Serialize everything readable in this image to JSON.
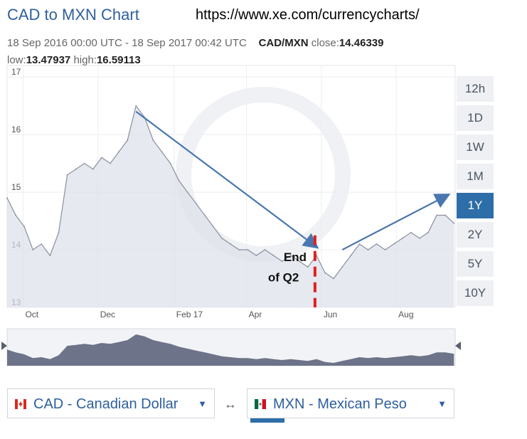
{
  "header": {
    "title": "CAD to MXN Chart",
    "url": "https://www.xe.com/currencycharts/",
    "range": "18 Sep 2016 00:00 UTC - 18 Sep 2017 00:42 UTC",
    "pair": "CAD/MXN",
    "close_label": "close:",
    "close_value": "14.46339",
    "low_label": "low:",
    "low_value": "13.47937",
    "high_label": "high:",
    "high_value": "16.59113"
  },
  "range_buttons": [
    {
      "label": "12h",
      "active": false
    },
    {
      "label": "1D",
      "active": false
    },
    {
      "label": "1W",
      "active": false
    },
    {
      "label": "1M",
      "active": false
    },
    {
      "label": "1Y",
      "active": true
    },
    {
      "label": "2Y",
      "active": false
    },
    {
      "label": "5Y",
      "active": false
    },
    {
      "label": "10Y",
      "active": false
    }
  ],
  "annotation": {
    "line1": "End",
    "line2": "of Q2"
  },
  "selectors": {
    "from": {
      "label": "CAD - Canadian Dollar"
    },
    "to": {
      "label": "MXN - Mexican Peso"
    },
    "swap_symbol": "↔"
  },
  "colors": {
    "accent": "#2e6ea8",
    "area": "#dcdfe8",
    "line": "#8a8fa0",
    "marker": "#e02020",
    "arrow": "#4a76b0"
  },
  "chart_data": {
    "type": "area",
    "ylim": [
      13,
      17.2
    ],
    "yticks": [
      13,
      14,
      15,
      16,
      17
    ],
    "xlim": [
      "2016-09-18",
      "2017-09-18"
    ],
    "xticks": [
      {
        "label": "Oct",
        "date": "2016-10-01"
      },
      {
        "label": "Dec",
        "date": "2016-12-01"
      },
      {
        "label": "Feb 17",
        "date": "2017-02-01"
      },
      {
        "label": "Apr",
        "date": "2017-04-01"
      },
      {
        "label": "Jun",
        "date": "2017-06-01"
      },
      {
        "label": "Aug",
        "date": "2017-08-01"
      }
    ],
    "series": [
      {
        "x": [
          "2016-09-18",
          "2016-09-25",
          "2016-10-02",
          "2016-10-09",
          "2016-10-16",
          "2016-10-23",
          "2016-10-30",
          "2016-11-06",
          "2016-11-13",
          "2016-11-20",
          "2016-11-27",
          "2016-12-04",
          "2016-12-11",
          "2016-12-18",
          "2016-12-25",
          "2017-01-01",
          "2017-01-08",
          "2017-01-15",
          "2017-01-22",
          "2017-01-29",
          "2017-02-05",
          "2017-02-12",
          "2017-02-19",
          "2017-02-26",
          "2017-03-05",
          "2017-03-12",
          "2017-03-19",
          "2017-03-26",
          "2017-04-02",
          "2017-04-09",
          "2017-04-16",
          "2017-04-23",
          "2017-04-30",
          "2017-05-07",
          "2017-05-14",
          "2017-05-21",
          "2017-05-28",
          "2017-06-04",
          "2017-06-11",
          "2017-06-18",
          "2017-06-25",
          "2017-07-02",
          "2017-07-09",
          "2017-07-16",
          "2017-07-23",
          "2017-07-30",
          "2017-08-06",
          "2017-08-13",
          "2017-08-20",
          "2017-08-27",
          "2017-09-03",
          "2017-09-10",
          "2017-09-17"
        ],
        "y": [
          14.9,
          14.6,
          14.4,
          14.0,
          14.1,
          13.9,
          14.3,
          15.3,
          15.4,
          15.5,
          15.4,
          15.6,
          15.5,
          15.7,
          15.9,
          16.5,
          16.3,
          15.9,
          15.7,
          15.5,
          15.2,
          15.0,
          14.8,
          14.6,
          14.4,
          14.2,
          14.1,
          14.0,
          14.0,
          13.9,
          14.0,
          13.9,
          13.8,
          13.9,
          13.8,
          13.7,
          13.9,
          13.6,
          13.5,
          13.7,
          13.9,
          14.1,
          14.0,
          14.1,
          14.0,
          14.1,
          14.2,
          14.3,
          14.2,
          14.3,
          14.6,
          14.6,
          14.46
        ]
      }
    ]
  }
}
